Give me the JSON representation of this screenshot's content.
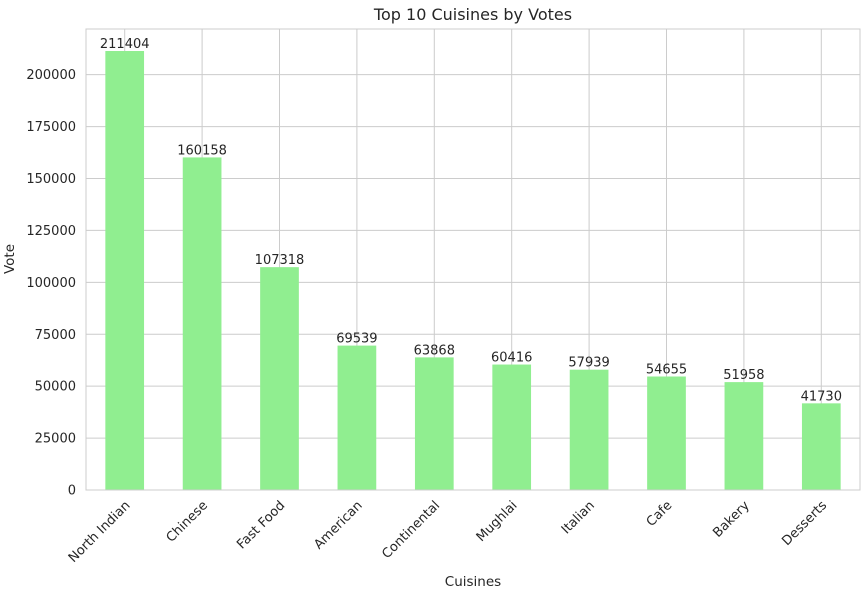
{
  "chart_data": {
    "type": "bar",
    "title": "Top 10 Cuisines by Votes",
    "xlabel": "Cuisines",
    "ylabel": "Vote",
    "categories": [
      "North Indian",
      "Chinese",
      "Fast Food",
      "American",
      "Continental",
      "Mughlai",
      "Italian",
      "Cafe",
      "Bakery",
      "Desserts"
    ],
    "values": [
      211404,
      160158,
      107318,
      69539,
      63868,
      60416,
      57939,
      54655,
      51958,
      41730
    ],
    "data_labels": [
      "211404",
      "160158",
      "107318",
      "69539",
      "63868",
      "60416",
      "57939",
      "54655",
      "51958",
      "41730"
    ],
    "ylim": [
      0,
      222000
    ],
    "yticks": [
      0,
      25000,
      50000,
      75000,
      100000,
      125000,
      150000,
      175000,
      200000
    ],
    "ytick_labels": [
      "0",
      "25000",
      "50000",
      "75000",
      "100000",
      "125000",
      "150000",
      "175000",
      "200000"
    ],
    "grid": true,
    "bar_color": "#90ee90",
    "grid_color": "#cccccc",
    "x_tick_rotation": 45
  }
}
